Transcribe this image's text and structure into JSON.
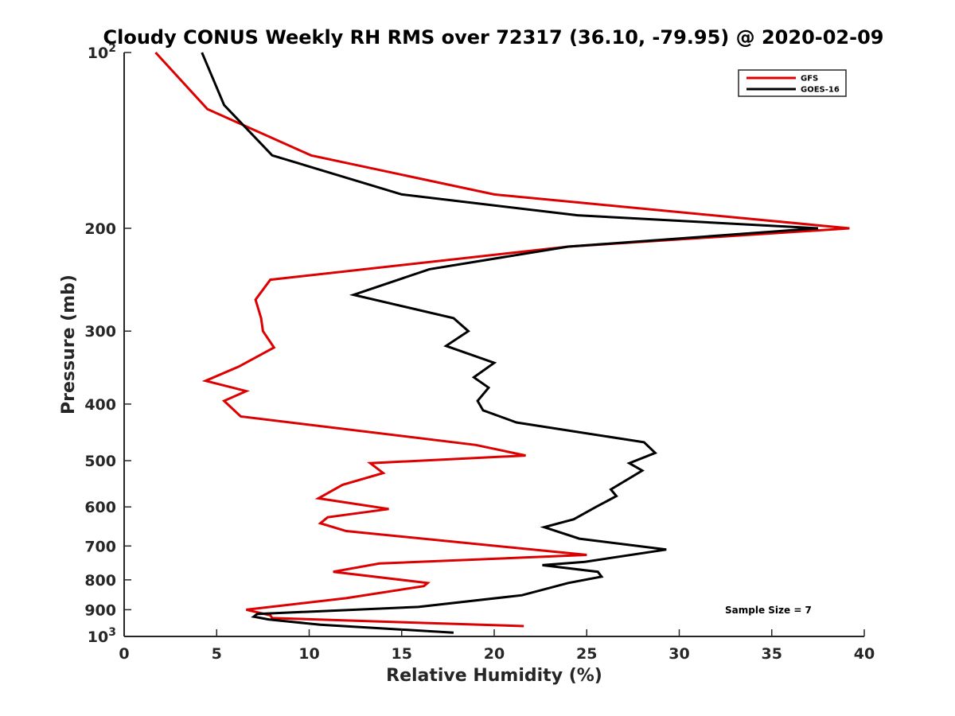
{
  "chart_data": {
    "type": "line",
    "title": "Cloudy CONUS Weekly RH RMS over 72317 (36.10, -79.95) @ 2020-02-09",
    "xlabel": "Relative Humidity (%)",
    "ylabel": "Pressure (mb)",
    "xlim": [
      0,
      40
    ],
    "ylim": [
      100,
      1000
    ],
    "y_scale": "log",
    "y_reversed": true,
    "grid": false,
    "legend_position": "top-right",
    "x_ticks": [
      0,
      5,
      10,
      15,
      20,
      25,
      30,
      35,
      40
    ],
    "x_tick_labels": [
      "0",
      "5",
      "10",
      "15",
      "20",
      "25",
      "30",
      "35",
      "40"
    ],
    "y_ticks": [
      100,
      200,
      300,
      400,
      500,
      600,
      700,
      800,
      900,
      1000
    ],
    "y_tick_labels": [
      {
        "base": "10",
        "sup": "2"
      },
      {
        "base": "200",
        "sup": ""
      },
      {
        "base": "300",
        "sup": ""
      },
      {
        "base": "400",
        "sup": ""
      },
      {
        "base": "500",
        "sup": ""
      },
      {
        "base": "600",
        "sup": ""
      },
      {
        "base": "700",
        "sup": ""
      },
      {
        "base": "800",
        "sup": ""
      },
      {
        "base": "900",
        "sup": ""
      },
      {
        "base": "10",
        "sup": "3"
      }
    ],
    "annotation": "Sample Size = 7",
    "series": [
      {
        "name": "GFS",
        "color": "#dd0000",
        "points": [
          [
            1.7,
            100
          ],
          [
            4.5,
            125
          ],
          [
            10.1,
            150
          ],
          [
            20,
            175
          ],
          [
            39.2,
            200
          ],
          [
            24,
            215
          ],
          [
            7.9,
            245
          ],
          [
            7.1,
            265
          ],
          [
            7.4,
            285
          ],
          [
            7.5,
            300
          ],
          [
            8.1,
            320
          ],
          [
            6.2,
            345
          ],
          [
            4.4,
            365
          ],
          [
            6.6,
            380
          ],
          [
            5.4,
            395
          ],
          [
            6.3,
            420
          ],
          [
            19,
            470
          ],
          [
            21.7,
            490
          ],
          [
            13.3,
            505
          ],
          [
            14,
            525
          ],
          [
            11.8,
            550
          ],
          [
            10.5,
            580
          ],
          [
            14.3,
            605
          ],
          [
            11,
            625
          ],
          [
            10.6,
            640
          ],
          [
            12,
            660
          ],
          [
            25,
            725
          ],
          [
            13.8,
            750
          ],
          [
            11.3,
            775
          ],
          [
            16.4,
            810
          ],
          [
            16.2,
            820
          ],
          [
            12,
            860
          ],
          [
            6.6,
            900
          ],
          [
            7.9,
            920
          ],
          [
            8,
            930
          ],
          [
            21.6,
            960
          ]
        ]
      },
      {
        "name": "GOES-16",
        "color": "#000000",
        "points": [
          [
            4.2,
            100
          ],
          [
            5.4,
            123
          ],
          [
            8,
            150
          ],
          [
            15,
            175
          ],
          [
            24.5,
            190
          ],
          [
            37.5,
            200
          ],
          [
            24,
            215
          ],
          [
            16.5,
            235
          ],
          [
            12.4,
            260
          ],
          [
            17.8,
            285
          ],
          [
            18.6,
            300
          ],
          [
            17.4,
            318
          ],
          [
            20,
            340
          ],
          [
            18.9,
            360
          ],
          [
            19.7,
            375
          ],
          [
            19.1,
            395
          ],
          [
            19.4,
            410
          ],
          [
            21.2,
            430
          ],
          [
            28.1,
            465
          ],
          [
            28.7,
            485
          ],
          [
            27.3,
            505
          ],
          [
            28,
            520
          ],
          [
            26.3,
            560
          ],
          [
            26.6,
            575
          ],
          [
            25.5,
            600
          ],
          [
            24.3,
            630
          ],
          [
            22.7,
            650
          ],
          [
            24.6,
            680
          ],
          [
            29.3,
            710
          ],
          [
            24.9,
            745
          ],
          [
            22.6,
            755
          ],
          [
            25.6,
            775
          ],
          [
            25.8,
            790
          ],
          [
            24,
            810
          ],
          [
            21.5,
            850
          ],
          [
            15.9,
            890
          ],
          [
            7.2,
            915
          ],
          [
            7,
            925
          ],
          [
            7.8,
            935
          ],
          [
            10.6,
            955
          ],
          [
            17.8,
            985
          ]
        ]
      }
    ]
  }
}
